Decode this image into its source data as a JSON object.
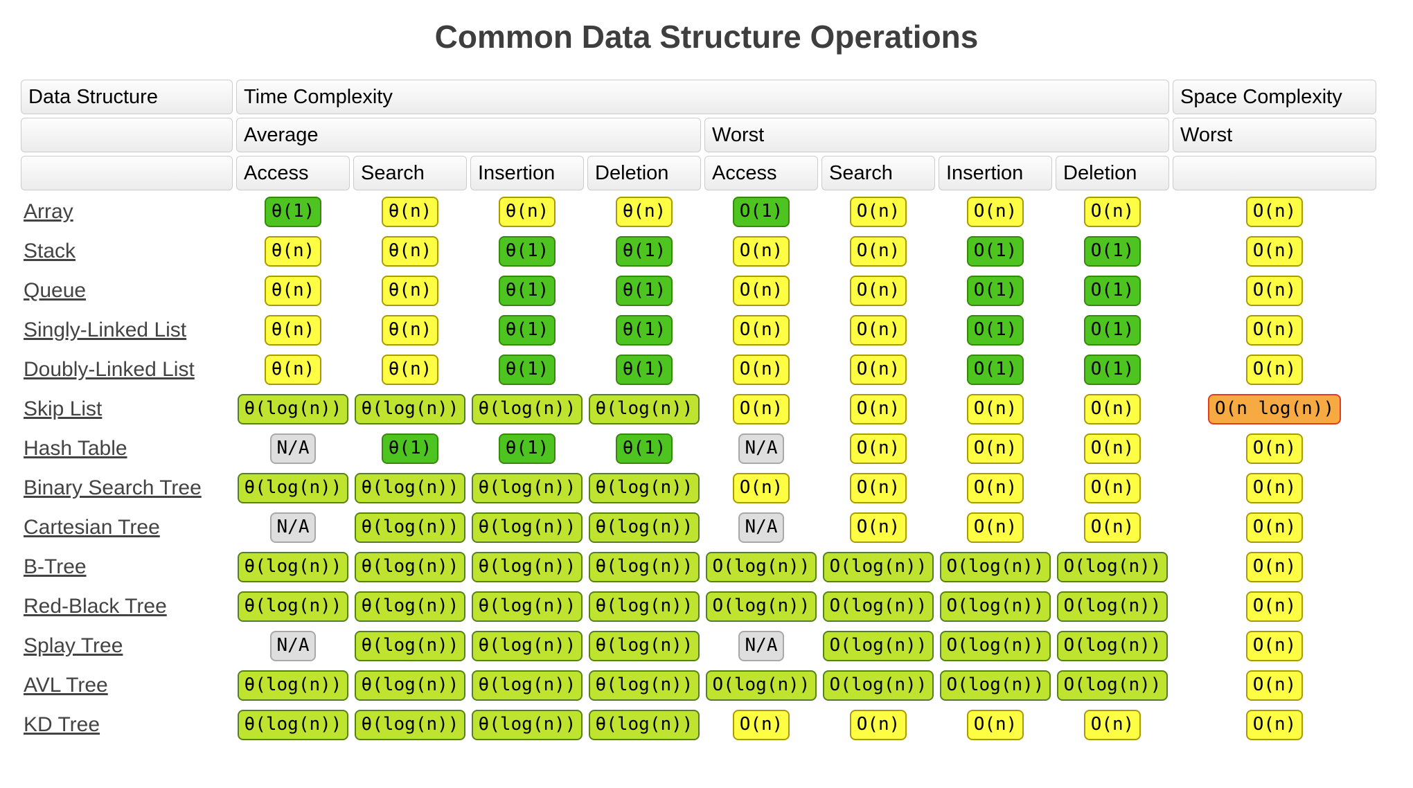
{
  "title": "Common Data Structure Operations",
  "table": {
    "header": {
      "data_structure": "Data Structure",
      "time_complexity": "Time Complexity",
      "space_complexity": "Space Complexity",
      "average": "Average",
      "worst": "Worst",
      "space_worst": "Worst",
      "ops": [
        "Access",
        "Search",
        "Insertion",
        "Deletion",
        "Access",
        "Search",
        "Insertion",
        "Deletion"
      ]
    },
    "colors": {
      "green": {
        "bg": "#4dc41f",
        "border": "#37880d"
      },
      "yellow": {
        "bg": "#fdfd43",
        "border": "#a89b00"
      },
      "yg": {
        "bg": "#bfe42f",
        "border": "#55801c"
      },
      "orange": {
        "bg": "#f7a942",
        "border": "#df3e23"
      },
      "gray": {
        "bg": "#dedede",
        "border": "#a8a8a8"
      }
    },
    "rows": [
      {
        "name": "Array",
        "cells": [
          {
            "t": "θ(1)",
            "c": "green"
          },
          {
            "t": "θ(n)",
            "c": "yellow"
          },
          {
            "t": "θ(n)",
            "c": "yellow"
          },
          {
            "t": "θ(n)",
            "c": "yellow"
          },
          {
            "t": "O(1)",
            "c": "green"
          },
          {
            "t": "O(n)",
            "c": "yellow"
          },
          {
            "t": "O(n)",
            "c": "yellow"
          },
          {
            "t": "O(n)",
            "c": "yellow"
          },
          {
            "t": "O(n)",
            "c": "yellow"
          }
        ]
      },
      {
        "name": "Stack",
        "cells": [
          {
            "t": "θ(n)",
            "c": "yellow"
          },
          {
            "t": "θ(n)",
            "c": "yellow"
          },
          {
            "t": "θ(1)",
            "c": "green"
          },
          {
            "t": "θ(1)",
            "c": "green"
          },
          {
            "t": "O(n)",
            "c": "yellow"
          },
          {
            "t": "O(n)",
            "c": "yellow"
          },
          {
            "t": "O(1)",
            "c": "green"
          },
          {
            "t": "O(1)",
            "c": "green"
          },
          {
            "t": "O(n)",
            "c": "yellow"
          }
        ]
      },
      {
        "name": "Queue",
        "cells": [
          {
            "t": "θ(n)",
            "c": "yellow"
          },
          {
            "t": "θ(n)",
            "c": "yellow"
          },
          {
            "t": "θ(1)",
            "c": "green"
          },
          {
            "t": "θ(1)",
            "c": "green"
          },
          {
            "t": "O(n)",
            "c": "yellow"
          },
          {
            "t": "O(n)",
            "c": "yellow"
          },
          {
            "t": "O(1)",
            "c": "green"
          },
          {
            "t": "O(1)",
            "c": "green"
          },
          {
            "t": "O(n)",
            "c": "yellow"
          }
        ]
      },
      {
        "name": "Singly-Linked List",
        "cells": [
          {
            "t": "θ(n)",
            "c": "yellow"
          },
          {
            "t": "θ(n)",
            "c": "yellow"
          },
          {
            "t": "θ(1)",
            "c": "green"
          },
          {
            "t": "θ(1)",
            "c": "green"
          },
          {
            "t": "O(n)",
            "c": "yellow"
          },
          {
            "t": "O(n)",
            "c": "yellow"
          },
          {
            "t": "O(1)",
            "c": "green"
          },
          {
            "t": "O(1)",
            "c": "green"
          },
          {
            "t": "O(n)",
            "c": "yellow"
          }
        ]
      },
      {
        "name": "Doubly-Linked List",
        "cells": [
          {
            "t": "θ(n)",
            "c": "yellow"
          },
          {
            "t": "θ(n)",
            "c": "yellow"
          },
          {
            "t": "θ(1)",
            "c": "green"
          },
          {
            "t": "θ(1)",
            "c": "green"
          },
          {
            "t": "O(n)",
            "c": "yellow"
          },
          {
            "t": "O(n)",
            "c": "yellow"
          },
          {
            "t": "O(1)",
            "c": "green"
          },
          {
            "t": "O(1)",
            "c": "green"
          },
          {
            "t": "O(n)",
            "c": "yellow"
          }
        ]
      },
      {
        "name": "Skip List",
        "cells": [
          {
            "t": "θ(log(n))",
            "c": "yg"
          },
          {
            "t": "θ(log(n))",
            "c": "yg"
          },
          {
            "t": "θ(log(n))",
            "c": "yg"
          },
          {
            "t": "θ(log(n))",
            "c": "yg"
          },
          {
            "t": "O(n)",
            "c": "yellow"
          },
          {
            "t": "O(n)",
            "c": "yellow"
          },
          {
            "t": "O(n)",
            "c": "yellow"
          },
          {
            "t": "O(n)",
            "c": "yellow"
          },
          {
            "t": "O(n log(n))",
            "c": "orange"
          }
        ]
      },
      {
        "name": "Hash Table",
        "cells": [
          {
            "t": "N/A",
            "c": "gray"
          },
          {
            "t": "θ(1)",
            "c": "green"
          },
          {
            "t": "θ(1)",
            "c": "green"
          },
          {
            "t": "θ(1)",
            "c": "green"
          },
          {
            "t": "N/A",
            "c": "gray"
          },
          {
            "t": "O(n)",
            "c": "yellow"
          },
          {
            "t": "O(n)",
            "c": "yellow"
          },
          {
            "t": "O(n)",
            "c": "yellow"
          },
          {
            "t": "O(n)",
            "c": "yellow"
          }
        ]
      },
      {
        "name": "Binary Search Tree",
        "cells": [
          {
            "t": "θ(log(n))",
            "c": "yg"
          },
          {
            "t": "θ(log(n))",
            "c": "yg"
          },
          {
            "t": "θ(log(n))",
            "c": "yg"
          },
          {
            "t": "θ(log(n))",
            "c": "yg"
          },
          {
            "t": "O(n)",
            "c": "yellow"
          },
          {
            "t": "O(n)",
            "c": "yellow"
          },
          {
            "t": "O(n)",
            "c": "yellow"
          },
          {
            "t": "O(n)",
            "c": "yellow"
          },
          {
            "t": "O(n)",
            "c": "yellow"
          }
        ]
      },
      {
        "name": "Cartesian Tree",
        "cells": [
          {
            "t": "N/A",
            "c": "gray"
          },
          {
            "t": "θ(log(n))",
            "c": "yg"
          },
          {
            "t": "θ(log(n))",
            "c": "yg"
          },
          {
            "t": "θ(log(n))",
            "c": "yg"
          },
          {
            "t": "N/A",
            "c": "gray"
          },
          {
            "t": "O(n)",
            "c": "yellow"
          },
          {
            "t": "O(n)",
            "c": "yellow"
          },
          {
            "t": "O(n)",
            "c": "yellow"
          },
          {
            "t": "O(n)",
            "c": "yellow"
          }
        ]
      },
      {
        "name": "B-Tree",
        "cells": [
          {
            "t": "θ(log(n))",
            "c": "yg"
          },
          {
            "t": "θ(log(n))",
            "c": "yg"
          },
          {
            "t": "θ(log(n))",
            "c": "yg"
          },
          {
            "t": "θ(log(n))",
            "c": "yg"
          },
          {
            "t": "O(log(n))",
            "c": "yg"
          },
          {
            "t": "O(log(n))",
            "c": "yg"
          },
          {
            "t": "O(log(n))",
            "c": "yg"
          },
          {
            "t": "O(log(n))",
            "c": "yg"
          },
          {
            "t": "O(n)",
            "c": "yellow"
          }
        ]
      },
      {
        "name": "Red-Black Tree",
        "cells": [
          {
            "t": "θ(log(n))",
            "c": "yg"
          },
          {
            "t": "θ(log(n))",
            "c": "yg"
          },
          {
            "t": "θ(log(n))",
            "c": "yg"
          },
          {
            "t": "θ(log(n))",
            "c": "yg"
          },
          {
            "t": "O(log(n))",
            "c": "yg"
          },
          {
            "t": "O(log(n))",
            "c": "yg"
          },
          {
            "t": "O(log(n))",
            "c": "yg"
          },
          {
            "t": "O(log(n))",
            "c": "yg"
          },
          {
            "t": "O(n)",
            "c": "yellow"
          }
        ]
      },
      {
        "name": "Splay Tree",
        "cells": [
          {
            "t": "N/A",
            "c": "gray"
          },
          {
            "t": "θ(log(n))",
            "c": "yg"
          },
          {
            "t": "θ(log(n))",
            "c": "yg"
          },
          {
            "t": "θ(log(n))",
            "c": "yg"
          },
          {
            "t": "N/A",
            "c": "gray"
          },
          {
            "t": "O(log(n))",
            "c": "yg"
          },
          {
            "t": "O(log(n))",
            "c": "yg"
          },
          {
            "t": "O(log(n))",
            "c": "yg"
          },
          {
            "t": "O(n)",
            "c": "yellow"
          }
        ]
      },
      {
        "name": "AVL Tree",
        "cells": [
          {
            "t": "θ(log(n))",
            "c": "yg"
          },
          {
            "t": "θ(log(n))",
            "c": "yg"
          },
          {
            "t": "θ(log(n))",
            "c": "yg"
          },
          {
            "t": "θ(log(n))",
            "c": "yg"
          },
          {
            "t": "O(log(n))",
            "c": "yg"
          },
          {
            "t": "O(log(n))",
            "c": "yg"
          },
          {
            "t": "O(log(n))",
            "c": "yg"
          },
          {
            "t": "O(log(n))",
            "c": "yg"
          },
          {
            "t": "O(n)",
            "c": "yellow"
          }
        ]
      },
      {
        "name": "KD Tree",
        "cells": [
          {
            "t": "θ(log(n))",
            "c": "yg"
          },
          {
            "t": "θ(log(n))",
            "c": "yg"
          },
          {
            "t": "θ(log(n))",
            "c": "yg"
          },
          {
            "t": "θ(log(n))",
            "c": "yg"
          },
          {
            "t": "O(n)",
            "c": "yellow"
          },
          {
            "t": "O(n)",
            "c": "yellow"
          },
          {
            "t": "O(n)",
            "c": "yellow"
          },
          {
            "t": "O(n)",
            "c": "yellow"
          },
          {
            "t": "O(n)",
            "c": "yellow"
          }
        ]
      }
    ]
  }
}
